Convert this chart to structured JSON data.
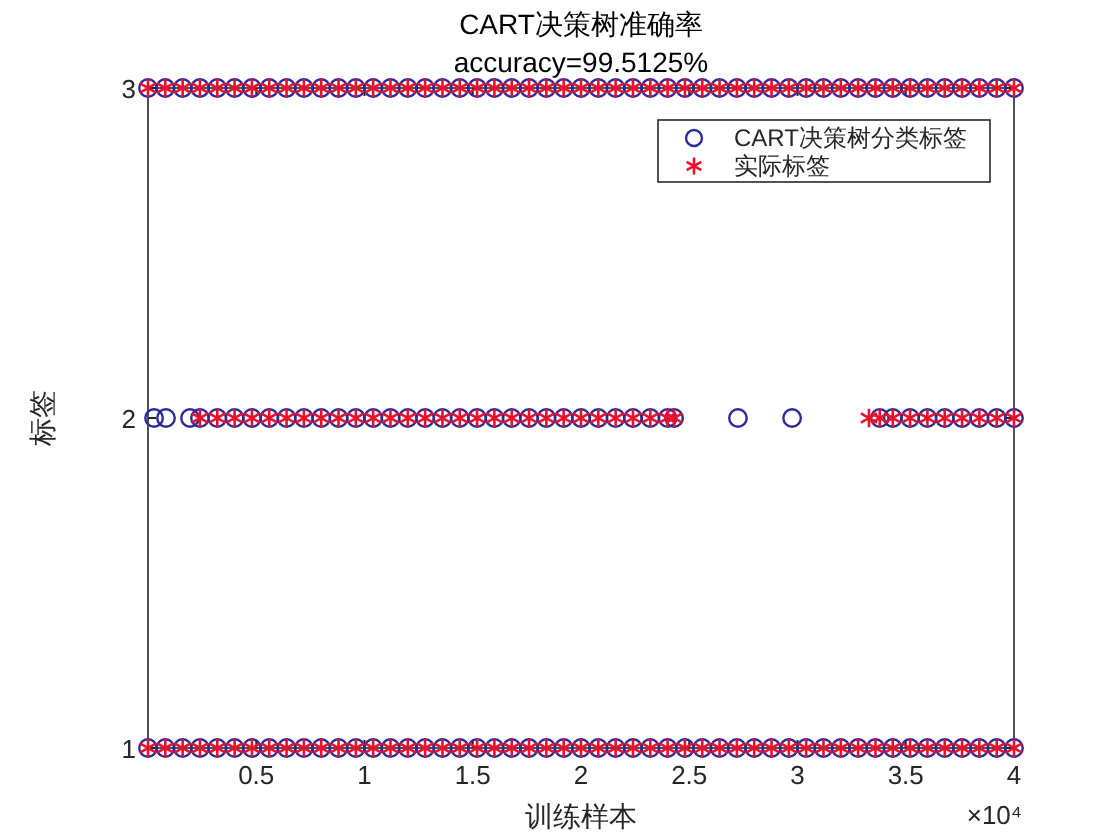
{
  "chart_data": {
    "type": "scatter",
    "title": "CART决策树准确率",
    "subtitle": "accuracy=99.5125%",
    "xlabel": "训练样本",
    "ylabel": "标签",
    "annotations": [
      "×10⁴"
    ],
    "xlim": [
      0,
      4
    ],
    "xticks": [
      0.5,
      1,
      1.5,
      2,
      2.5,
      3,
      3.5,
      4
    ],
    "ylim": [
      1,
      3
    ],
    "yticks": [
      1,
      2,
      3
    ],
    "grid": false,
    "legend": "top right",
    "series": [
      {
        "name": "CART决策树分类标签",
        "color": "#2b2b9a",
        "marker": "circle",
        "x": [
          0,
          0.08,
          0.16,
          0.24,
          0.32,
          0.4,
          0.48,
          0.56,
          0.64,
          0.72,
          0.8,
          0.88,
          0.96,
          1.04,
          1.12,
          1.2,
          1.28,
          1.36,
          1.44,
          1.52,
          1.6,
          1.68,
          1.76,
          1.84,
          1.92,
          2,
          2.08,
          2.16,
          2.24,
          2.32,
          2.4,
          2.48,
          2.56,
          2.64,
          2.72,
          2.8,
          2.88,
          2.96,
          3.04,
          3.12,
          3.2,
          3.28,
          3.36,
          3.44,
          3.52,
          3.6,
          3.68,
          3.76,
          3.84,
          3.92,
          4,
          0.028,
          0.083,
          0.194,
          0.24,
          0.32,
          0.4,
          0.48,
          0.56,
          0.64,
          0.72,
          0.8,
          0.88,
          0.96,
          1.04,
          1.12,
          1.2,
          1.28,
          1.36,
          1.44,
          1.52,
          1.6,
          1.68,
          1.76,
          1.84,
          1.92,
          2,
          2.08,
          2.16,
          2.24,
          2.32,
          2.4,
          2.43,
          2.725,
          2.975,
          3.38,
          3.44,
          3.52,
          3.6,
          3.68,
          3.76,
          3.84,
          3.92,
          4,
          0,
          0.08,
          0.16,
          0.24,
          0.32,
          0.4,
          0.48,
          0.56,
          0.64,
          0.72,
          0.8,
          0.88,
          0.96,
          1.04,
          1.12,
          1.2,
          1.28,
          1.36,
          1.44,
          1.52,
          1.6,
          1.68,
          1.76,
          1.84,
          1.92,
          2,
          2.08,
          2.16,
          2.24,
          2.32,
          2.4,
          2.48,
          2.56,
          2.64,
          2.72,
          2.8,
          2.88,
          2.96,
          3.04,
          3.12,
          3.2,
          3.28,
          3.36,
          3.44,
          3.52,
          3.6,
          3.68,
          3.76,
          3.84,
          3.92,
          4
        ],
        "values": [
          3,
          3,
          3,
          3,
          3,
          3,
          3,
          3,
          3,
          3,
          3,
          3,
          3,
          3,
          3,
          3,
          3,
          3,
          3,
          3,
          3,
          3,
          3,
          3,
          3,
          3,
          3,
          3,
          3,
          3,
          3,
          3,
          3,
          3,
          3,
          3,
          3,
          3,
          3,
          3,
          3,
          3,
          3,
          3,
          3,
          3,
          3,
          3,
          3,
          3,
          3,
          2,
          2,
          2,
          2,
          2,
          2,
          2,
          2,
          2,
          2,
          2,
          2,
          2,
          2,
          2,
          2,
          2,
          2,
          2,
          2,
          2,
          2,
          2,
          2,
          2,
          2,
          2,
          2,
          2,
          2,
          2,
          2,
          2,
          2,
          2,
          2,
          2,
          2,
          2,
          2,
          2,
          2,
          2,
          1,
          1,
          1,
          1,
          1,
          1,
          1,
          1,
          1,
          1,
          1,
          1,
          1,
          1,
          1,
          1,
          1,
          1,
          1,
          1,
          1,
          1,
          1,
          1,
          1,
          1,
          1,
          1,
          1,
          1,
          1,
          1,
          1,
          1,
          1,
          1,
          1,
          1,
          1,
          1,
          1,
          1,
          1,
          1,
          1,
          1,
          1,
          1,
          1,
          1,
          1
        ]
      },
      {
        "name": "实际标签",
        "color": "#e8112d",
        "marker": "cross",
        "x": [
          0,
          0.08,
          0.16,
          0.24,
          0.32,
          0.4,
          0.48,
          0.56,
          0.64,
          0.72,
          0.8,
          0.88,
          0.96,
          1.04,
          1.12,
          1.2,
          1.28,
          1.36,
          1.44,
          1.52,
          1.6,
          1.68,
          1.76,
          1.84,
          1.92,
          2,
          2.08,
          2.16,
          2.24,
          2.32,
          2.4,
          2.48,
          2.56,
          2.64,
          2.72,
          2.8,
          2.88,
          2.96,
          3.04,
          3.12,
          3.2,
          3.28,
          3.36,
          3.44,
          3.52,
          3.6,
          3.68,
          3.76,
          3.84,
          3.92,
          4,
          0.24,
          0.32,
          0.4,
          0.48,
          0.56,
          0.64,
          0.72,
          0.8,
          0.88,
          0.96,
          1.04,
          1.12,
          1.2,
          1.28,
          1.36,
          1.44,
          1.52,
          1.6,
          1.68,
          1.76,
          1.84,
          1.92,
          2,
          2.08,
          2.16,
          2.24,
          2.32,
          2.4,
          2.43,
          3.33,
          3.38,
          3.44,
          3.52,
          3.6,
          3.68,
          3.76,
          3.84,
          3.92,
          4,
          0,
          0.08,
          0.16,
          0.24,
          0.32,
          0.4,
          0.48,
          0.56,
          0.64,
          0.72,
          0.8,
          0.88,
          0.96,
          1.04,
          1.12,
          1.2,
          1.28,
          1.36,
          1.44,
          1.52,
          1.6,
          1.68,
          1.76,
          1.84,
          1.92,
          2,
          2.08,
          2.16,
          2.24,
          2.32,
          2.4,
          2.48,
          2.56,
          2.64,
          2.72,
          2.8,
          2.88,
          2.96,
          3.04,
          3.12,
          3.2,
          3.28,
          3.36,
          3.44,
          3.52,
          3.6,
          3.68,
          3.76,
          3.84,
          3.92,
          4
        ],
        "values": [
          3,
          3,
          3,
          3,
          3,
          3,
          3,
          3,
          3,
          3,
          3,
          3,
          3,
          3,
          3,
          3,
          3,
          3,
          3,
          3,
          3,
          3,
          3,
          3,
          3,
          3,
          3,
          3,
          3,
          3,
          3,
          3,
          3,
          3,
          3,
          3,
          3,
          3,
          3,
          3,
          3,
          3,
          3,
          3,
          3,
          3,
          3,
          3,
          3,
          3,
          3,
          2,
          2,
          2,
          2,
          2,
          2,
          2,
          2,
          2,
          2,
          2,
          2,
          2,
          2,
          2,
          2,
          2,
          2,
          2,
          2,
          2,
          2,
          2,
          2,
          2,
          2,
          2,
          2,
          2,
          2,
          2,
          2,
          2,
          2,
          2,
          2,
          2,
          2,
          2,
          1,
          1,
          1,
          1,
          1,
          1,
          1,
          1,
          1,
          1,
          1,
          1,
          1,
          1,
          1,
          1,
          1,
          1,
          1,
          1,
          1,
          1,
          1,
          1,
          1,
          1,
          1,
          1,
          1,
          1,
          1,
          1,
          1,
          1,
          1,
          1,
          1,
          1,
          1,
          1,
          1,
          1,
          1,
          1,
          1,
          1,
          1,
          1,
          1,
          1,
          1
        ]
      }
    ]
  }
}
